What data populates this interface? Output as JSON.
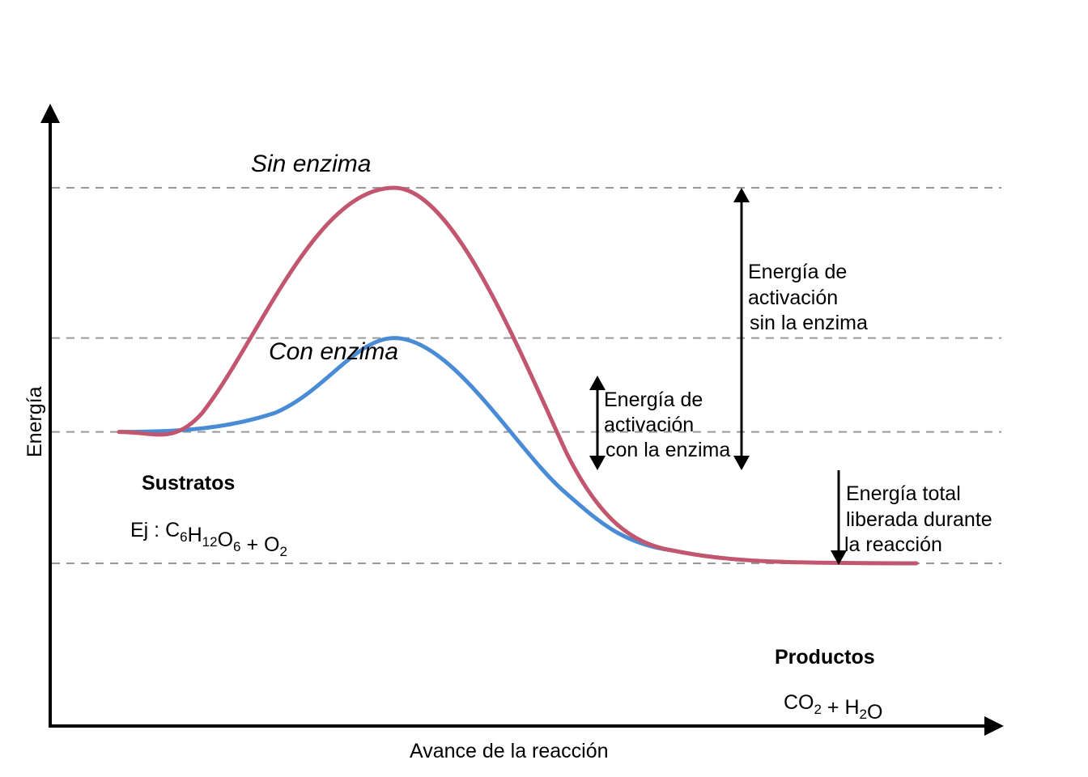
{
  "diagram": {
    "type": "energy-profile",
    "axes": {
      "y_label": "Energía",
      "x_label": "Avance de la reacción"
    },
    "energy_levels": {
      "substrates": 0.35,
      "products": 0.0,
      "peak_with_enzyme": 0.6,
      "peak_without_enzyme": 1.0
    },
    "curves": [
      {
        "name": "Sin enzima",
        "color": "#C2566E"
      },
      {
        "name": "Con enzima",
        "color": "#4A8BD6"
      }
    ],
    "reactants": {
      "title": "Sustratos",
      "formula_prefix": "Ej : ",
      "formula": [
        {
          "t": "C",
          "sub": "6"
        },
        {
          "t": "H",
          "sub": "12"
        },
        {
          "t": "O",
          "sub": "6"
        },
        {
          "t": " + "
        },
        {
          "t": "O",
          "sub": "2"
        }
      ]
    },
    "products": {
      "title": "Productos",
      "formula": [
        {
          "t": "CO",
          "sub": "2"
        },
        {
          "t": " + "
        },
        {
          "t": "H",
          "sub": "2"
        },
        {
          "t": "O"
        }
      ]
    },
    "annotations": {
      "without_enzyme": [
        "Energía de",
        "activación",
        "sin la enzima"
      ],
      "with_enzyme": [
        "Energía de",
        "activación",
        "con la enzima"
      ],
      "total": [
        "Energía total",
        "liberada durante",
        "la reacción"
      ]
    },
    "colors": {
      "dash": "#999999",
      "axis": "#000000"
    }
  }
}
